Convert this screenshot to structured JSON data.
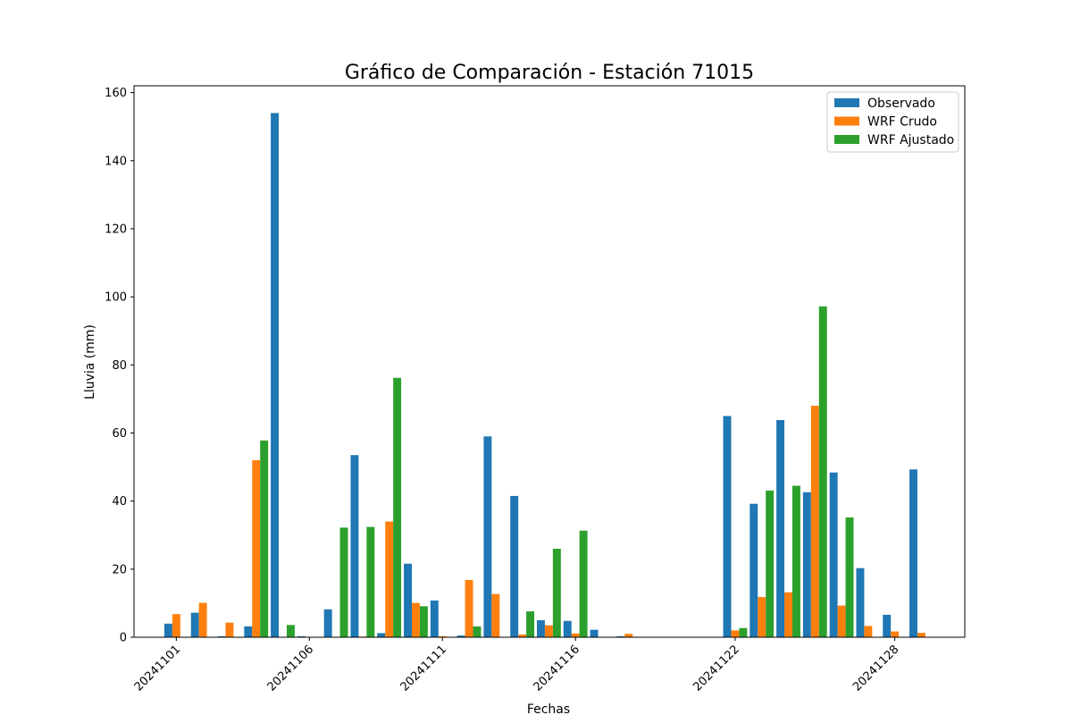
{
  "chart_data": {
    "type": "bar",
    "title": "Gráfico de Comparación - Estación 71015",
    "xlabel": "Fechas",
    "ylabel": "Lluvia (mm)",
    "ylim": [
      0,
      162
    ],
    "yticks": [
      0,
      20,
      40,
      60,
      80,
      100,
      120,
      140,
      160
    ],
    "x_start": "20241101",
    "x_end": "20241130",
    "xtick_labels": [
      "20241101",
      "20241106",
      "20241111",
      "20241116",
      "20241122",
      "20241128"
    ],
    "legend_position": "top-right",
    "colors": [
      "#1f77b4",
      "#ff7f0e",
      "#2ca02c"
    ],
    "series": [
      {
        "name": "Observado",
        "points": [
          [
            "20241101",
            4
          ],
          [
            "20241102",
            7.2
          ],
          [
            "20241103",
            0.3
          ],
          [
            "20241104",
            3.2
          ],
          [
            "20241105",
            154
          ],
          [
            "20241106",
            0.3
          ],
          [
            "20241107",
            8.2
          ],
          [
            "20241108",
            53.5
          ],
          [
            "20241109",
            1.2
          ],
          [
            "20241110",
            21.6
          ],
          [
            "20241111",
            10.8
          ],
          [
            "20241112",
            0.5
          ],
          [
            "20241113",
            59
          ],
          [
            "20241114",
            41.5
          ],
          [
            "20241115",
            5
          ],
          [
            "20241116",
            4.8
          ],
          [
            "20241117",
            2.2
          ],
          [
            "20241118",
            0.3
          ],
          [
            "20241122",
            65
          ],
          [
            "20241123",
            39.2
          ],
          [
            "20241124",
            63.8
          ],
          [
            "20241125",
            42.6
          ],
          [
            "20241126",
            48.4
          ],
          [
            "20241127",
            20.3
          ],
          [
            "20241128",
            6.6
          ],
          [
            "20241129",
            49.3
          ]
        ]
      },
      {
        "name": "WRF Crudo",
        "points": [
          [
            "20241101",
            6.8
          ],
          [
            "20241102",
            10.1
          ],
          [
            "20241103",
            4.3
          ],
          [
            "20241104",
            52
          ],
          [
            "20241105",
            0
          ],
          [
            "20241106",
            0
          ],
          [
            "20241107",
            0
          ],
          [
            "20241108",
            0.2
          ],
          [
            "20241109",
            34
          ],
          [
            "20241110",
            10.1
          ],
          [
            "20241111",
            0.3
          ],
          [
            "20241112",
            16.8
          ],
          [
            "20241113",
            12.7
          ],
          [
            "20241114",
            0.8
          ],
          [
            "20241115",
            3.5
          ],
          [
            "20241116",
            1.1
          ],
          [
            "20241117",
            0
          ],
          [
            "20241118",
            1
          ],
          [
            "20241122",
            2
          ],
          [
            "20241123",
            11.8
          ],
          [
            "20241124",
            13.2
          ],
          [
            "20241125",
            68
          ],
          [
            "20241126",
            9.3
          ],
          [
            "20241127",
            3.3
          ],
          [
            "20241128",
            1.7
          ],
          [
            "20241129",
            1.3
          ]
        ]
      },
      {
        "name": "WRF Ajustado",
        "points": [
          [
            "20241101",
            0
          ],
          [
            "20241102",
            0
          ],
          [
            "20241103",
            0
          ],
          [
            "20241104",
            57.8
          ],
          [
            "20241105",
            3.6
          ],
          [
            "20241106",
            0
          ],
          [
            "20241107",
            32.2
          ],
          [
            "20241108",
            32.4
          ],
          [
            "20241109",
            76.2
          ],
          [
            "20241110",
            9.1
          ],
          [
            "20241111",
            0
          ],
          [
            "20241112",
            3.2
          ],
          [
            "20241113",
            0
          ],
          [
            "20241114",
            7.6
          ],
          [
            "20241115",
            26
          ],
          [
            "20241116",
            31.3
          ],
          [
            "20241117",
            0
          ],
          [
            "20241118",
            0
          ],
          [
            "20241122",
            2.7
          ],
          [
            "20241123",
            43.1
          ],
          [
            "20241124",
            44.5
          ],
          [
            "20241125",
            97.2
          ],
          [
            "20241126",
            35.2
          ],
          [
            "20241127",
            0
          ],
          [
            "20241128",
            0
          ],
          [
            "20241129",
            0
          ]
        ]
      }
    ]
  }
}
